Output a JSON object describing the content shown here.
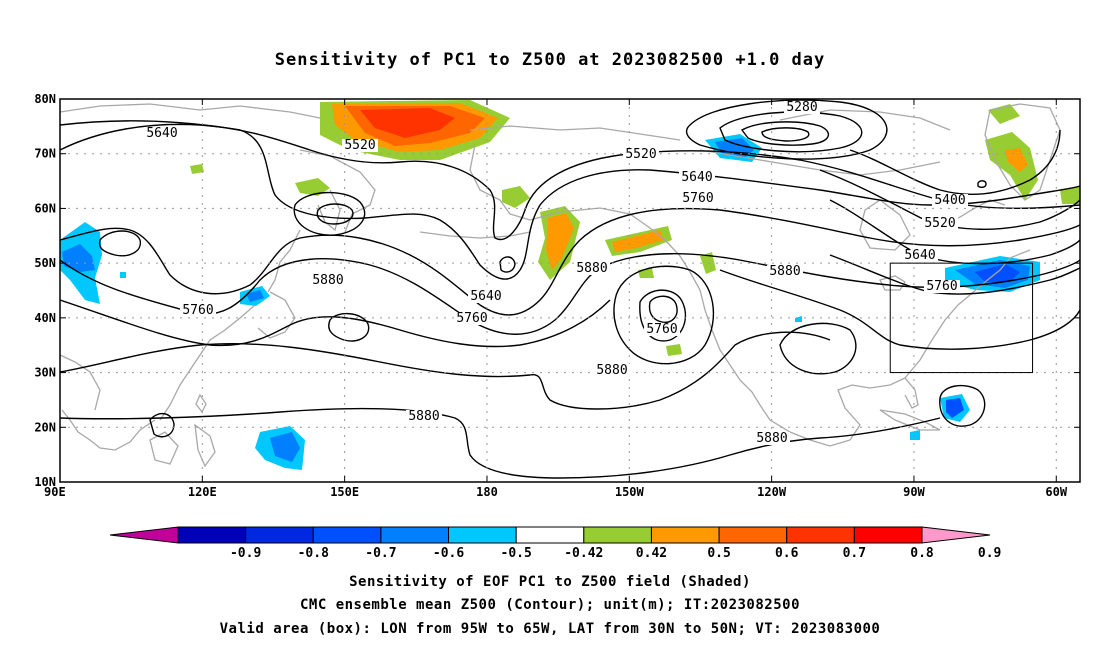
{
  "title": "Sensitivity of PC1 to Z500 at 2023082500 +1.0 day",
  "map": {
    "lat_ticks": [
      "10N",
      "20N",
      "30N",
      "40N",
      "50N",
      "60N",
      "70N",
      "80N"
    ],
    "lon_ticks": [
      "90E",
      "120E",
      "150E",
      "180",
      "150W",
      "120W",
      "90W",
      "60W"
    ],
    "contour_labels": [
      {
        "text": "5640",
        "id": "5640-a"
      },
      {
        "text": "5520",
        "id": "5520-a"
      },
      {
        "text": "5280",
        "id": "5280-a"
      },
      {
        "text": "5520",
        "id": "5520-b"
      },
      {
        "text": "5640",
        "id": "5640-b"
      },
      {
        "text": "5760",
        "id": "5760-a"
      },
      {
        "text": "5400",
        "id": "5400-a"
      },
      {
        "text": "5520",
        "id": "5520-c"
      },
      {
        "text": "5640",
        "id": "5640-c"
      },
      {
        "text": "5880",
        "id": "5880-a"
      },
      {
        "text": "5880",
        "id": "5880-b"
      },
      {
        "text": "5760",
        "id": "5760-b"
      },
      {
        "text": "5880",
        "id": "5880-c"
      },
      {
        "text": "5640",
        "id": "5640-d"
      },
      {
        "text": "5760",
        "id": "5760-c"
      },
      {
        "text": "5760",
        "id": "5760-d"
      },
      {
        "text": "5760",
        "id": "5760-e"
      },
      {
        "text": "5880",
        "id": "5880-d"
      },
      {
        "text": "5880",
        "id": "5880-e"
      },
      {
        "text": "5880",
        "id": "5880-f"
      }
    ],
    "valid_box": {
      "lon_w": -95,
      "lon_e": -65,
      "lat_s": 30,
      "lat_n": 50
    }
  },
  "colorbar": {
    "labels": [
      "-0.9",
      "-0.8",
      "-0.7",
      "-0.6",
      "-0.5",
      "-0.42",
      "0.42",
      "0.5",
      "0.6",
      "0.7",
      "0.8",
      "0.9"
    ],
    "colors": [
      "#c0009a",
      "#0000b8",
      "#0028e0",
      "#0050ff",
      "#0080ff",
      "#00c8ff",
      "#ffffff",
      "#98cc33",
      "#ff9900",
      "#ff6600",
      "#ff3300",
      "#ff0000",
      "#ff99cc"
    ]
  },
  "footer": {
    "line1": "Sensitivity of EOF PC1 to Z500 field (Shaded)",
    "line2": "CMC ensemble mean Z500 (Contour); unit(m); IT:2023082500",
    "line3": "Valid area (box): LON from 95W to 65W, LAT from 30N to 50N; VT: 2023083000"
  }
}
